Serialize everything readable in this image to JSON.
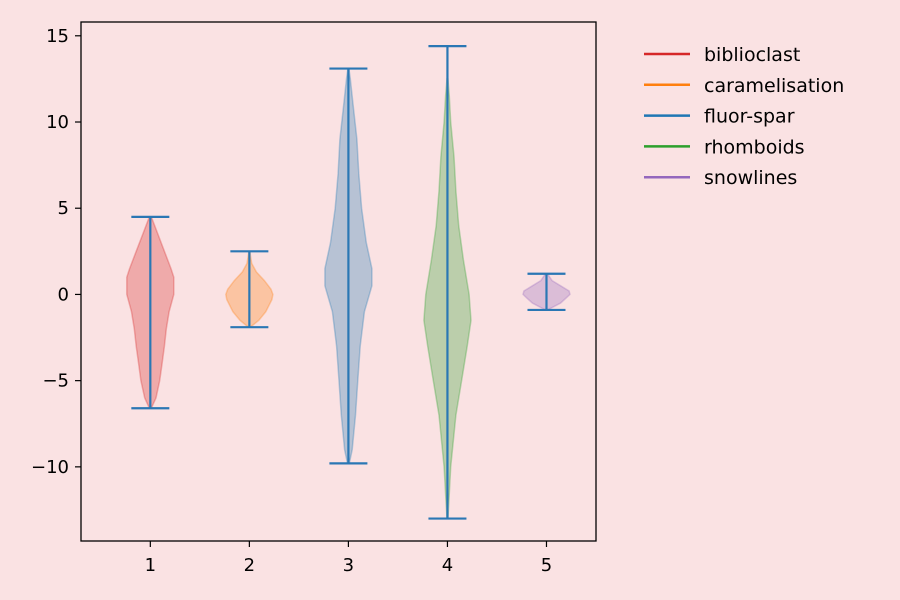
{
  "chart_data": {
    "type": "violin",
    "title": "",
    "xlabel": "",
    "ylabel": "",
    "ylim": [
      -14.3,
      15.8
    ],
    "xlim": [
      0.3,
      5.5
    ],
    "x_ticks": [
      "1",
      "2",
      "3",
      "4",
      "5"
    ],
    "y_ticks": [
      15,
      10,
      5,
      0,
      -5,
      -10
    ],
    "y_tick_labels": [
      "15",
      "10",
      "5",
      "0",
      "−5",
      "−10"
    ],
    "grid": false,
    "legend_position": "outside-right",
    "range_line_color": "#2a77b4",
    "series": [
      {
        "name": "biblioclast",
        "position": 1,
        "color": "#d62728",
        "min": -6.6,
        "max": 4.5,
        "density": [
          [
            -6.6,
            0.02
          ],
          [
            -6,
            0.12
          ],
          [
            -5,
            0.2
          ],
          [
            -4,
            0.25
          ],
          [
            -3,
            0.3
          ],
          [
            -2,
            0.34
          ],
          [
            -1,
            0.4
          ],
          [
            0,
            0.5
          ],
          [
            1,
            0.5
          ],
          [
            1.5,
            0.44
          ],
          [
            2.5,
            0.3
          ],
          [
            3.5,
            0.16
          ],
          [
            4.5,
            0.02
          ]
        ]
      },
      {
        "name": "caramelisation",
        "position": 2,
        "color": "#ff7f0e",
        "min": -1.9,
        "max": 2.5,
        "density": [
          [
            -1.9,
            0.02
          ],
          [
            -1.5,
            0.2
          ],
          [
            -1,
            0.35
          ],
          [
            -0.3,
            0.48
          ],
          [
            0,
            0.5
          ],
          [
            0.3,
            0.46
          ],
          [
            0.8,
            0.32
          ],
          [
            1.3,
            0.15
          ],
          [
            1.8,
            0.05
          ],
          [
            2.5,
            0.01
          ]
        ]
      },
      {
        "name": "fluor-spar",
        "position": 3,
        "color": "#1f77b4",
        "min": -9.8,
        "max": 13.1,
        "density": [
          [
            -9.8,
            0.02
          ],
          [
            -9,
            0.08
          ],
          [
            -7,
            0.15
          ],
          [
            -5,
            0.2
          ],
          [
            -3,
            0.25
          ],
          [
            -1,
            0.34
          ],
          [
            0.5,
            0.5
          ],
          [
            1.5,
            0.5
          ],
          [
            3,
            0.38
          ],
          [
            5,
            0.28
          ],
          [
            7,
            0.22
          ],
          [
            9,
            0.18
          ],
          [
            11,
            0.1
          ],
          [
            12.5,
            0.04
          ],
          [
            13.1,
            0.01
          ]
        ]
      },
      {
        "name": "rhomboids",
        "position": 4,
        "color": "#2ca02c",
        "min": -13.0,
        "max": 14.4,
        "density": [
          [
            -13,
            0.01
          ],
          [
            -12,
            0.03
          ],
          [
            -10,
            0.07
          ],
          [
            -7,
            0.18
          ],
          [
            -5,
            0.3
          ],
          [
            -3,
            0.42
          ],
          [
            -1.5,
            0.5
          ],
          [
            0,
            0.46
          ],
          [
            2,
            0.34
          ],
          [
            4,
            0.24
          ],
          [
            6,
            0.18
          ],
          [
            8,
            0.14
          ],
          [
            10,
            0.07
          ],
          [
            11.5,
            0.04
          ],
          [
            12.5,
            0.01
          ]
        ]
      },
      {
        "name": "snowlines",
        "position": 5,
        "color": "#9467bd",
        "min": -0.9,
        "max": 1.2,
        "density": [
          [
            -0.9,
            0.02
          ],
          [
            -0.5,
            0.3
          ],
          [
            -0.2,
            0.42
          ],
          [
            0,
            0.5
          ],
          [
            0.2,
            0.48
          ],
          [
            0.5,
            0.3
          ],
          [
            0.8,
            0.12
          ],
          [
            1.2,
            0.02
          ]
        ]
      }
    ]
  }
}
